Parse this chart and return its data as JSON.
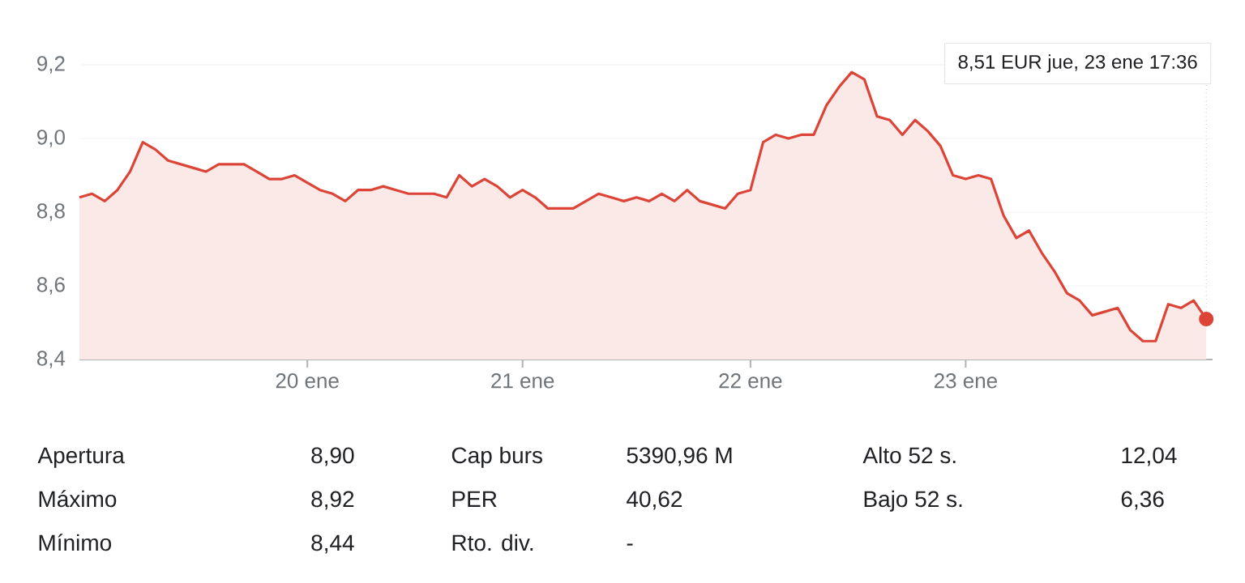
{
  "chart_data": {
    "type": "area",
    "color": "#db4437",
    "categories": [
      null,
      null,
      null,
      null,
      null,
      null,
      null,
      null,
      null,
      null,
      null,
      null,
      null,
      null,
      null,
      null,
      null,
      null,
      "20 ene",
      null,
      null,
      null,
      null,
      null,
      null,
      null,
      null,
      null,
      null,
      null,
      null,
      null,
      null,
      null,
      null,
      "21 ene",
      null,
      null,
      null,
      null,
      null,
      null,
      null,
      null,
      null,
      null,
      null,
      null,
      null,
      null,
      null,
      null,
      null,
      "22 ene",
      null,
      null,
      null,
      null,
      null,
      null,
      null,
      null,
      null,
      null,
      null,
      null,
      null,
      null,
      null,
      null,
      "23 ene",
      null,
      null,
      null,
      null,
      null,
      null,
      null,
      null,
      null,
      null,
      null,
      null,
      null,
      null,
      null,
      null,
      null,
      null,
      null
    ],
    "values": [
      8.84,
      8.85,
      8.83,
      8.86,
      8.91,
      8.99,
      8.97,
      8.94,
      8.93,
      8.92,
      8.91,
      8.93,
      8.93,
      8.93,
      8.91,
      8.89,
      8.89,
      8.9,
      8.88,
      8.86,
      8.85,
      8.83,
      8.86,
      8.86,
      8.87,
      8.86,
      8.85,
      8.85,
      8.85,
      8.84,
      8.9,
      8.87,
      8.89,
      8.87,
      8.84,
      8.86,
      8.84,
      8.81,
      8.81,
      8.81,
      8.83,
      8.85,
      8.84,
      8.83,
      8.84,
      8.83,
      8.85,
      8.83,
      8.86,
      8.83,
      8.82,
      8.81,
      8.85,
      8.86,
      8.99,
      9.01,
      9.0,
      9.01,
      9.01,
      9.09,
      9.14,
      9.18,
      9.16,
      9.06,
      9.05,
      9.01,
      9.05,
      9.02,
      8.98,
      8.9,
      8.89,
      8.9,
      8.89,
      8.79,
      8.73,
      8.75,
      8.69,
      8.64,
      8.58,
      8.56,
      8.52,
      8.53,
      8.54,
      8.48,
      8.45,
      8.45,
      8.55,
      8.54,
      8.56,
      8.51
    ],
    "ylim": [
      8.4,
      9.2
    ],
    "yticks": [
      {
        "value": 8.4,
        "label": "8,4"
      },
      {
        "value": 8.6,
        "label": "8,6"
      },
      {
        "value": 8.8,
        "label": "8,8"
      },
      {
        "value": 9.0,
        "label": "9,0"
      },
      {
        "value": 9.2,
        "label": "9,2"
      }
    ],
    "grid": "y",
    "annotations": [
      "8,51 EUR  jue, 23 ene 17:36",
      "Apertura",
      "8,90",
      "Cap burs",
      "5390,96 M",
      "Alto 52 s.",
      "12,04",
      "Máximo",
      "8,92",
      "PER",
      "40,62",
      "Bajo 52 s.",
      "6,36",
      "Mínimo",
      "8,44",
      "Rto. div.",
      "-"
    ]
  }
}
